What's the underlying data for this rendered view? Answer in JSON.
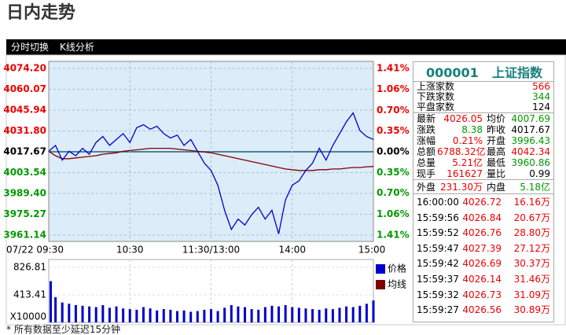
{
  "header": {
    "title": "日内走势",
    "tabs": [
      "分时切换",
      "K线分析"
    ]
  },
  "chart_data": {
    "type": "line",
    "x": [
      0,
      5,
      10,
      15,
      20,
      25,
      30,
      35,
      40,
      45,
      50,
      55,
      60,
      65,
      70,
      75,
      80,
      85,
      90,
      95,
      100,
      105,
      110,
      115,
      120,
      125,
      130,
      135,
      140,
      145,
      150,
      155,
      160,
      165,
      170,
      175,
      180,
      185,
      190,
      195,
      200,
      205,
      210,
      215,
      220,
      225,
      230,
      235,
      240
    ],
    "xlim": [
      0,
      240
    ],
    "xticks": [
      {
        "value": 0,
        "label": "07/22 09:30"
      },
      {
        "value": 60,
        "label": "10:30"
      },
      {
        "value": 120,
        "label": "11:30/13:00"
      },
      {
        "value": 180,
        "label": "14:00"
      },
      {
        "value": 240,
        "label": "15:00"
      }
    ],
    "ylim": [
      3961.14,
      4074.2
    ],
    "yticks": [
      {
        "value": 4074.2,
        "label": "4074.20"
      },
      4060.07,
      4045.94,
      {
        "value": 4031.8,
        "label": "4031.80"
      },
      4017.67,
      4003.54,
      {
        "value": 3989.4,
        "label": "3989.40"
      },
      3975.27,
      3961.14
    ],
    "y2lim": [
      -1.41,
      1.41
    ],
    "y2ticks": [
      {
        "value": 1.41,
        "label": "1.41%"
      },
      {
        "value": 1.06,
        "label": "1.06%"
      },
      {
        "value": 0.7,
        "label": "0.70%"
      },
      {
        "value": 0.35,
        "label": "0.35%"
      },
      {
        "value": 0,
        "label": "0.00%"
      },
      {
        "value": -0.35,
        "label": "0.35%"
      },
      {
        "value": -0.7,
        "label": "0.70%"
      },
      {
        "value": -1.06,
        "label": "1.06%"
      },
      {
        "value": -1.41,
        "label": "1.41%"
      }
    ],
    "grid": true,
    "series": [
      {
        "name": "价格",
        "color": "#0000cc",
        "values": [
          4018,
          4022,
          4012,
          4018,
          4015,
          4020,
          4016,
          4024,
          4028,
          4022,
          4026,
          4030,
          4024,
          4034,
          4036,
          4033,
          4035,
          4030,
          4027,
          4029,
          4022,
          4026,
          4018,
          4010,
          4005,
          3995,
          3978,
          3965,
          3972,
          3968,
          3975,
          3980,
          3972,
          3978,
          3962,
          3985,
          3995,
          3998,
          4005,
          4010,
          4020,
          4012,
          4022,
          4030,
          4038,
          4044,
          4032,
          4028,
          4026.05
        ]
      },
      {
        "name": "均线",
        "color": "#800000",
        "values": [
          4018,
          4015,
          4013,
          4013,
          4013.5,
          4014,
          4014.5,
          4015,
          4016,
          4016.5,
          4017,
          4018,
          4018.5,
          4019,
          4019.5,
          4020,
          4020,
          4020,
          4020,
          4019.5,
          4019,
          4018.5,
          4018,
          4017.5,
          4017,
          4016,
          4015,
          4014,
          4013,
          4012,
          4011,
          4010,
          4009,
          4008,
          4007,
          4006,
          4005.5,
          4005,
          4005,
          4005,
          4005.5,
          4005.5,
          4006,
          4006,
          4006.5,
          4007,
          4007,
          4007.5,
          4007.69
        ]
      }
    ],
    "volume": {
      "type": "bar",
      "color": "#0000cc",
      "ylim": [
        0,
        826.81
      ],
      "yticks": [
        826.81,
        413.41
      ],
      "unit": "X10000",
      "values": [
        620,
        380,
        300,
        280,
        260,
        250,
        240,
        230,
        260,
        220,
        240,
        210,
        200,
        190,
        230,
        210,
        180,
        200,
        190,
        170,
        180,
        160,
        170,
        190,
        200,
        170,
        220,
        260,
        240,
        230,
        200,
        190,
        230,
        250,
        240,
        260,
        230,
        220,
        210,
        200,
        190,
        210,
        200,
        220,
        240,
        230,
        250,
        280,
        330
      ]
    }
  },
  "quote": {
    "code": "000001",
    "name": "上证指数",
    "breadth": [
      [
        "上涨家数",
        "566"
      ],
      [
        "下跌家数",
        "344"
      ],
      [
        "平盘家数",
        "124"
      ]
    ],
    "stats": [
      [
        "最新",
        "4026.05",
        "均价",
        "4007.69"
      ],
      [
        "涨跌",
        "8.38",
        "昨收",
        "4017.67"
      ],
      [
        "涨幅",
        "0.21%",
        "开盘",
        "3996.43"
      ],
      [
        "总额",
        "6788.32亿",
        "最高",
        "4042.34"
      ],
      [
        "总量",
        "5.21亿",
        "最低",
        "3960.86"
      ],
      [
        "现手",
        "161627",
        "量比",
        "0.99"
      ],
      [
        "外盘",
        "231.30万",
        "内盘",
        "5.18亿"
      ]
    ],
    "trades": [
      [
        "16:00:00",
        "4026.72",
        "16.16万"
      ],
      [
        "15:59:56",
        "4026.84",
        "20.67万"
      ],
      [
        "15:59:52",
        "4026.76",
        "28.80万"
      ],
      [
        "15:59:47",
        "4027.39",
        "27.12万"
      ],
      [
        "15:59:42",
        "4026.69",
        "30.37万"
      ],
      [
        "15:59:37",
        "4026.14",
        "31.46万"
      ],
      [
        "15:59:32",
        "4026.73",
        "31.09万"
      ],
      [
        "15:59:27",
        "4026.56",
        "30.89万"
      ]
    ]
  },
  "footer": "*  所有数据至少延迟15分钟"
}
